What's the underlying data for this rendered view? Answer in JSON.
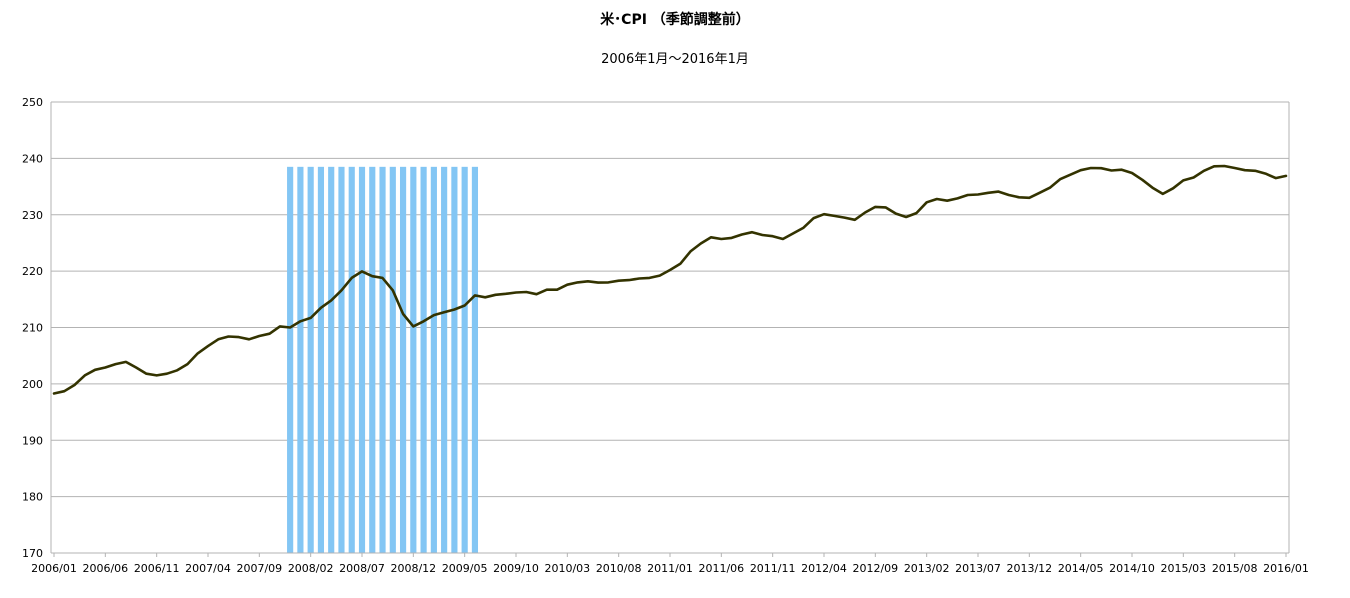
{
  "chart_data": {
    "type": "line",
    "title": "米･CPI （季節調整前）",
    "subtitle": "2006年1月～2016年1月",
    "xlabel": "",
    "ylabel": "",
    "ylim": [
      170,
      250
    ],
    "yticks": [
      170,
      180,
      190,
      200,
      210,
      220,
      230,
      240,
      250
    ],
    "grid": "horizontal",
    "legend": "none",
    "line_color": "#333300",
    "highlight_color": "#83c6f4",
    "x_tick_labels": [
      "2006/01",
      "2006/06",
      "2006/11",
      "2007/04",
      "2007/09",
      "2008/02",
      "2008/07",
      "2008/12",
      "2009/05",
      "2009/10",
      "2010/03",
      "2010/08",
      "2011/01",
      "2011/06",
      "2011/11",
      "2012/04",
      "2012/09",
      "2013/02",
      "2013/07",
      "2013/12",
      "2014/05",
      "2014/10",
      "2015/03",
      "2015/08",
      "2016/01"
    ],
    "highlight": {
      "from": "2007/12",
      "to": "2009/06",
      "value": 238.5
    },
    "series": [
      {
        "start": "2006/01",
        "values": [
          198.3,
          198.7,
          199.8,
          201.5,
          202.5,
          202.9,
          203.5,
          203.9,
          202.9,
          201.8,
          201.5,
          201.8,
          202.4,
          203.5,
          205.4,
          206.7,
          207.9,
          208.4,
          208.3,
          207.9,
          208.5,
          208.9,
          210.2,
          210.0,
          211.1,
          211.7,
          213.5,
          214.8,
          216.6,
          218.8,
          219.96,
          219.1,
          218.8,
          216.6,
          212.4,
          210.2,
          211.1,
          212.2,
          212.7,
          213.2,
          213.9,
          215.7,
          215.35,
          215.8,
          215.97,
          216.2,
          216.3,
          215.9,
          216.7,
          216.7,
          217.6,
          218.0,
          218.2,
          217.96,
          218.0,
          218.3,
          218.4,
          218.7,
          218.8,
          219.2,
          220.2,
          221.3,
          223.5,
          224.9,
          226.0,
          225.7,
          225.9,
          226.5,
          226.9,
          226.4,
          226.2,
          225.7,
          226.7,
          227.7,
          229.4,
          230.1,
          229.8,
          229.5,
          229.1,
          230.4,
          231.4,
          231.3,
          230.2,
          229.6,
          230.3,
          232.2,
          232.8,
          232.5,
          232.9,
          233.5,
          233.6,
          233.9,
          234.1,
          233.5,
          233.1,
          233.0,
          233.9,
          234.8,
          236.3,
          237.1,
          237.9,
          238.3,
          238.25,
          237.85,
          238.0,
          237.4,
          236.2,
          234.8,
          233.7,
          234.7,
          236.1,
          236.6,
          237.8,
          238.6,
          238.65,
          238.3,
          237.9,
          237.8,
          237.3,
          236.5,
          236.9
        ]
      }
    ]
  }
}
